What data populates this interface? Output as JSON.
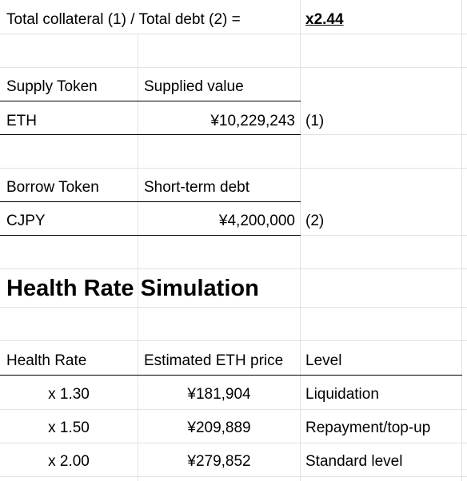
{
  "summary": {
    "label": "Total collateral (1) / Total debt (2) =",
    "value": "x2.44"
  },
  "supply": {
    "header_token": "Supply Token",
    "header_value": "Supplied value",
    "token": "ETH",
    "value": "¥10,229,243",
    "note": "(1)"
  },
  "borrow": {
    "header_token": "Borrow Token",
    "header_value": "Short-term debt",
    "token": "CJPY",
    "value": "¥4,200,000",
    "note": "(2)"
  },
  "simulation": {
    "title": "Health Rate Simulation",
    "headers": [
      "Health Rate",
      "Estimated ETH price",
      "Level"
    ],
    "rows": [
      {
        "rate": "x 1.30",
        "price": "¥181,904",
        "level": "Liquidation"
      },
      {
        "rate": "x 1.50",
        "price": "¥209,889",
        "level": "Repayment/top-up"
      },
      {
        "rate": "x 2.00",
        "price": "¥279,852",
        "level": "Standard level"
      }
    ]
  }
}
